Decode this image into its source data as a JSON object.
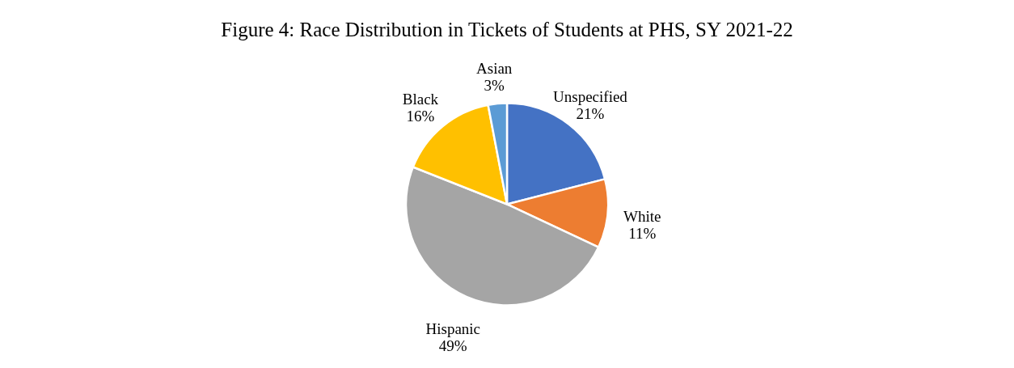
{
  "chart_data": {
    "type": "pie",
    "title": "Figure 4: Race Distribution in Tickets of Students at PHS, SY 2021-22",
    "categories": [
      "Unspecified",
      "White",
      "Hispanic",
      "Black",
      "Asian"
    ],
    "values": [
      21,
      11,
      49,
      16,
      3
    ],
    "value_labels": [
      "21%",
      "11%",
      "49%",
      "16%",
      "3%"
    ],
    "colors": [
      "#4472c4",
      "#ed7d31",
      "#a5a5a5",
      "#ffc000",
      "#5b9bd5"
    ],
    "legend": false
  }
}
